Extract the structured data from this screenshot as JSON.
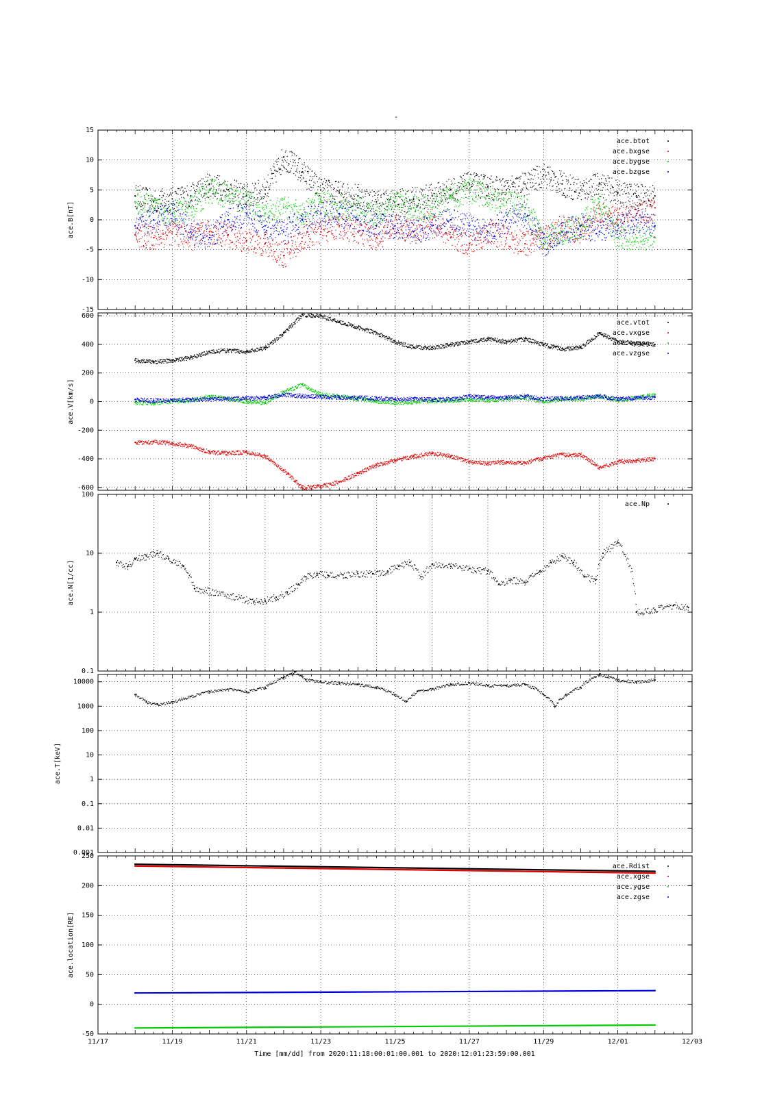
{
  "page": {
    "title_mark": "-",
    "footer_label": "Time [mm/dd]  from 2020:11:18:00:01:00.001  to  2020:12:01:23:59:00.001"
  },
  "colors": {
    "black": "#000000",
    "red": "#dd0000",
    "green": "#00cc00",
    "blue": "#0000dd",
    "grid": "#000000"
  },
  "x_axis": {
    "tick_labels": [
      "11/17",
      "11/19",
      "11/21",
      "11/23",
      "11/25",
      "11/27",
      "11/29",
      "12/01",
      "12/03"
    ],
    "tick_days": [
      0,
      2,
      4,
      6,
      8,
      10,
      12,
      14,
      16
    ],
    "range_days": [
      0,
      16
    ],
    "data_start_day": 1,
    "data_end_day": 15
  },
  "chart_data": [
    {
      "type": "scatter",
      "ylabel": "ace.B[nT]",
      "ylim": [
        -15,
        15
      ],
      "scale": "linear",
      "yticks": [
        15,
        10,
        5,
        0,
        -5,
        -10,
        -15
      ],
      "ytick_labels": [
        "15",
        "10",
        "5",
        "0",
        "-5",
        "-10",
        "-15"
      ],
      "legend_placement": "top-right",
      "grid": true,
      "xgrid_days": [
        2,
        4,
        6,
        8,
        10,
        12,
        14
      ],
      "series": [
        {
          "name": "ace.btot",
          "color": "#000000",
          "x": [
            1,
            1.5,
            2,
            2.5,
            3,
            3.5,
            4,
            4.5,
            5,
            5.5,
            6,
            6.5,
            7,
            7.5,
            8,
            8.5,
            9,
            9.5,
            10,
            10.5,
            11,
            11.5,
            12,
            12.5,
            13,
            13.5,
            14,
            14.5,
            15
          ],
          "y": [
            4,
            3,
            3.5,
            4,
            6,
            5,
            4,
            5,
            10.5,
            8,
            5,
            4.5,
            4,
            3,
            3,
            3.5,
            4,
            5,
            6,
            5.5,
            5,
            6,
            7.5,
            6,
            5,
            6,
            4.5,
            4,
            4
          ]
        },
        {
          "name": "ace.bxgse",
          "color": "#dd0000",
          "x": [
            1,
            1.5,
            2,
            2.5,
            3,
            3.5,
            4,
            4.5,
            5,
            5.5,
            6,
            6.5,
            7,
            7.5,
            8,
            8.5,
            9,
            9.5,
            10,
            10.5,
            11,
            11.5,
            12,
            12.5,
            13,
            13.5,
            14,
            14.5,
            15
          ],
          "y": [
            -2.5,
            -3,
            -2,
            -3,
            -2,
            -2.5,
            -3.5,
            -4,
            -6,
            -3,
            -2,
            -1,
            -2,
            -3,
            -1,
            -2,
            0,
            -3,
            -4,
            -2,
            -3,
            -4,
            -3,
            -1,
            -2,
            1,
            0,
            1,
            2
          ]
        },
        {
          "name": "ace.bygse",
          "color": "#00cc00",
          "x": [
            1,
            1.5,
            2,
            2.5,
            3,
            3.5,
            4,
            4.5,
            5,
            5.5,
            6,
            6.5,
            7,
            7.5,
            8,
            8.5,
            9,
            9.5,
            10,
            10.5,
            11,
            11.5,
            12,
            12.5,
            13,
            13.5,
            14,
            14.5,
            15
          ],
          "y": [
            3,
            2,
            1,
            2,
            5,
            4,
            3,
            1,
            2,
            1,
            3,
            2,
            2,
            1,
            3,
            2,
            2,
            4,
            5,
            4,
            3,
            2,
            -3,
            -2,
            -1,
            3,
            -3,
            -3,
            -3
          ]
        },
        {
          "name": "ace.bzgse",
          "color": "#0000dd",
          "x": [
            1,
            1.5,
            2,
            2.5,
            3,
            3.5,
            4,
            4.5,
            5,
            5.5,
            6,
            6.5,
            7,
            7.5,
            8,
            8.5,
            9,
            9.5,
            10,
            10.5,
            11,
            11.5,
            12,
            12.5,
            13,
            13.5,
            14,
            14.5,
            15
          ],
          "y": [
            -1,
            0,
            1,
            -2,
            -3,
            0,
            1,
            -1,
            -2,
            0,
            1,
            1,
            0,
            -1,
            -1,
            -2,
            -1,
            0,
            -1,
            -2,
            0,
            1,
            -4,
            -2,
            -1,
            -2,
            -1,
            0,
            -1
          ]
        }
      ]
    },
    {
      "type": "scatter",
      "ylabel": "ace.V[km/s]",
      "ylim": [
        -620,
        620
      ],
      "scale": "linear",
      "yticks": [
        600,
        400,
        200,
        0,
        -200,
        -400,
        -600
      ],
      "ytick_labels": [
        "600",
        "400",
        "200",
        "0",
        "-200",
        "-400",
        "-600"
      ],
      "legend_placement": "top-right",
      "grid": true,
      "xgrid_days": [
        2,
        4,
        6,
        8,
        10,
        12,
        14
      ],
      "series": [
        {
          "name": "ace.vtot",
          "color": "#000000",
          "x": [
            1,
            1.5,
            2,
            2.5,
            3,
            3.5,
            4,
            4.5,
            5,
            5.5,
            6,
            6.5,
            7,
            7.5,
            8,
            8.5,
            9,
            9.5,
            10,
            10.5,
            11,
            11.5,
            12,
            12.5,
            13,
            13.5,
            14,
            14.5,
            15
          ],
          "y": [
            290,
            280,
            290,
            310,
            350,
            360,
            350,
            380,
            480,
            610,
            600,
            560,
            520,
            480,
            420,
            380,
            380,
            400,
            420,
            440,
            420,
            440,
            400,
            370,
            380,
            480,
            420,
            410,
            400
          ]
        },
        {
          "name": "ace.vxgse",
          "color": "#dd0000",
          "x": [
            1,
            1.5,
            2,
            2.5,
            3,
            3.5,
            4,
            4.5,
            5,
            5.5,
            6,
            6.5,
            7,
            7.5,
            8,
            8.5,
            9,
            9.5,
            10,
            10.5,
            11,
            11.5,
            12,
            12.5,
            13,
            13.5,
            14,
            14.5,
            15
          ],
          "y": [
            -285,
            -280,
            -290,
            -310,
            -350,
            -360,
            -350,
            -380,
            -480,
            -600,
            -590,
            -560,
            -500,
            -440,
            -410,
            -380,
            -360,
            -380,
            -420,
            -430,
            -420,
            -430,
            -390,
            -370,
            -370,
            -460,
            -420,
            -410,
            -400
          ]
        },
        {
          "name": "ace.vygse",
          "color": "#00cc00",
          "x": [
            1,
            1.5,
            2,
            2.5,
            3,
            3.5,
            4,
            4.5,
            5,
            5.5,
            6,
            6.5,
            7,
            7.5,
            8,
            8.5,
            9,
            9.5,
            10,
            10.5,
            11,
            11.5,
            12,
            12.5,
            13,
            13.5,
            14,
            14.5,
            15
          ],
          "y": [
            -5,
            -8,
            5,
            10,
            40,
            20,
            0,
            -5,
            70,
            120,
            50,
            40,
            20,
            5,
            -5,
            0,
            5,
            10,
            20,
            10,
            20,
            30,
            0,
            20,
            20,
            40,
            10,
            30,
            50
          ]
        },
        {
          "name": "ace.vzgse",
          "color": "#0000dd",
          "x": [
            1,
            1.5,
            2,
            2.5,
            3,
            3.5,
            4,
            4.5,
            5,
            5.5,
            6,
            6.5,
            7,
            7.5,
            8,
            8.5,
            9,
            9.5,
            10,
            10.5,
            11,
            11.5,
            12,
            12.5,
            13,
            13.5,
            14,
            14.5,
            15
          ],
          "y": [
            15,
            10,
            12,
            15,
            20,
            20,
            25,
            30,
            50,
            40,
            35,
            30,
            30,
            25,
            20,
            20,
            15,
            20,
            40,
            30,
            30,
            40,
            20,
            25,
            30,
            40,
            20,
            30,
            30
          ]
        }
      ]
    },
    {
      "type": "scatter",
      "ylabel": "ace.N[1/cc]",
      "ylim": [
        0.1,
        100
      ],
      "scale": "log",
      "yticks": [
        100,
        10,
        1,
        0.1
      ],
      "ytick_labels": [
        "100",
        "10",
        "1",
        "0.1"
      ],
      "legend_placement": "top-right",
      "grid": true,
      "xgrid_days": [
        1.5,
        3,
        4.5,
        6,
        7.5,
        9,
        10.5,
        12,
        13.5
      ],
      "series": [
        {
          "name": "ace.Np",
          "color": "#000000",
          "x": [
            0.5,
            0.8,
            1,
            1.3,
            1.6,
            1.9,
            2.3,
            2.6,
            4.2,
            4.5,
            4.8,
            5.1,
            5.4,
            5.6,
            5.9,
            6.2,
            6.6,
            7,
            7.4,
            7.8,
            8.1,
            8.4,
            8.7,
            9,
            9.5,
            10,
            10.5,
            10.8,
            11.1,
            11.5,
            11.9,
            12.2,
            12.5,
            12.8,
            13.1,
            13.4,
            13.6,
            14,
            14.5,
            15,
            15.5,
            15.9
          ],
          "y": [
            7,
            6,
            8,
            9,
            10,
            8,
            6,
            2.5,
            1.5,
            1.6,
            1.8,
            2.2,
            3,
            4,
            4.5,
            4.2,
            4.3,
            4.5,
            4.5,
            5,
            6,
            7,
            4,
            6.5,
            6,
            5.5,
            5,
            3,
            3.5,
            3.2,
            5,
            7,
            9,
            7,
            4,
            3.5,
            10,
            15,
            1,
            1.1,
            1.3,
            1.2
          ]
        }
      ]
    },
    {
      "type": "scatter",
      "ylabel": "ace.T[keV]",
      "ylim": [
        0.001,
        20000
      ],
      "scale": "log",
      "yticks": [
        10000,
        1000,
        100,
        10,
        1,
        0.1,
        0.01,
        0.001
      ],
      "ytick_labels": [
        "10000",
        "1000",
        "100",
        "10",
        "1",
        "0.1",
        "0.01",
        "0.001"
      ],
      "legend_placement": "top-right",
      "grid": true,
      "xgrid_days": [
        2,
        4,
        6,
        8,
        10,
        12,
        14
      ],
      "series": [
        {
          "name": "",
          "color": "#000000",
          "x": [
            1,
            1.3,
            1.6,
            2,
            2.5,
            3,
            3.5,
            4,
            4.5,
            5,
            5.3,
            5.6,
            6,
            6.5,
            7,
            7.5,
            8,
            8.3,
            8.6,
            9,
            9.5,
            10,
            10.5,
            11,
            11.5,
            12,
            12.3,
            12.6,
            13,
            13.5,
            14,
            14.5,
            15
          ],
          "y": [
            3000,
            1500,
            1200,
            1500,
            2500,
            4000,
            5000,
            4000,
            6000,
            15000,
            25000,
            12000,
            10000,
            9000,
            8000,
            6000,
            3000,
            1500,
            4000,
            5000,
            8000,
            9000,
            7000,
            7000,
            8000,
            3000,
            1000,
            3000,
            6000,
            20000,
            12000,
            10000,
            12000
          ]
        }
      ]
    },
    {
      "type": "line",
      "ylabel": "ace.location[RE]",
      "ylim": [
        -50,
        250
      ],
      "scale": "linear",
      "yticks": [
        250,
        200,
        150,
        100,
        50,
        0,
        -50
      ],
      "ytick_labels": [
        "250",
        "200",
        "150",
        "100",
        "50",
        "0",
        "-50"
      ],
      "legend_placement": "top-right",
      "grid": true,
      "xgrid_days": [
        2,
        4,
        6,
        8,
        10,
        12,
        14
      ],
      "series": [
        {
          "name": "ace.Rdist",
          "color": "#000000",
          "x": [
            1,
            15
          ],
          "y": [
            236,
            224
          ]
        },
        {
          "name": "ace.xgse",
          "color": "#dd0000",
          "x": [
            1,
            15
          ],
          "y": [
            233,
            221
          ]
        },
        {
          "name": "ace.ygse",
          "color": "#00cc00",
          "x": [
            1,
            15
          ],
          "y": [
            -40,
            -35
          ]
        },
        {
          "name": "ace.zgse",
          "color": "#0000dd",
          "x": [
            1,
            15
          ],
          "y": [
            19,
            23
          ]
        }
      ]
    }
  ]
}
